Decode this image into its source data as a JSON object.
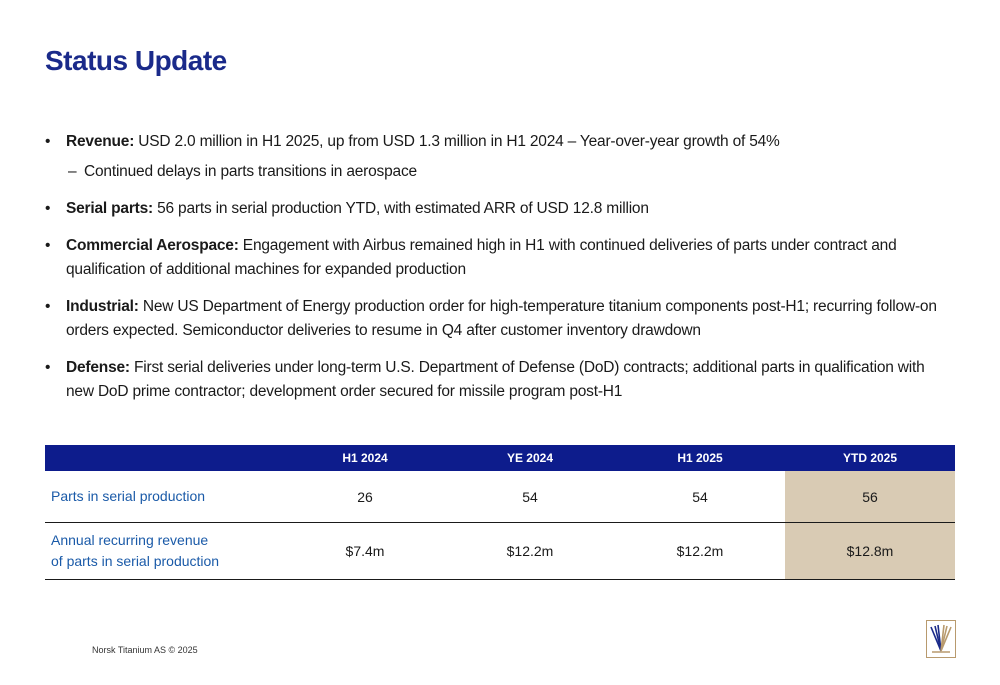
{
  "title": "Status Update",
  "bullets": [
    {
      "label": "Revenue:",
      "text": " USD 2.0 million in H1 2025, up from USD 1.3 million in H1 2024 – Year-over-year growth of 54%",
      "sub": "Continued delays in parts transitions in aerospace"
    },
    {
      "label": "Serial parts:",
      "text": " 56 parts in serial production YTD, with estimated ARR of USD 12.8 million"
    },
    {
      "label": "Commercial Aerospace:",
      "text": " Engagement with Airbus remained high in H1 with continued deliveries of parts under contract and qualification of additional machines for expanded production"
    },
    {
      "label": "Industrial:",
      "text": " New US Department of Energy production order for high-temperature titanium components post-H1; recurring follow-on orders expected. Semiconductor deliveries to resume in Q4 after customer inventory drawdown"
    },
    {
      "label": "Defense:",
      "text": " First serial deliveries under long-term U.S. Department of Defense (DoD) contracts; additional parts in qualification with new DoD prime contractor; development order secured for missile program post-H1"
    }
  ],
  "table": {
    "headers": [
      "",
      "H1 2024",
      "YE 2024",
      "H1 2025",
      "YTD 2025"
    ],
    "rows": [
      {
        "label_line1": "Parts in serial production",
        "label_line2": "",
        "values": [
          "26",
          "54",
          "54",
          "56"
        ]
      },
      {
        "label_line1": "Annual recurring revenue",
        "label_line2": "of parts in serial production",
        "values": [
          "$7.4m",
          "$12.2m",
          "$12.2m",
          "$12.8m"
        ]
      }
    ]
  },
  "footer": "Norsk Titanium AS © 2025",
  "colors": {
    "title": "#1a2a8a",
    "table_header_bg": "#0d1c8c",
    "row_label": "#1a5aa8",
    "ytd_highlight": "#d9cbb4",
    "logo_gold": "#b89a6e",
    "logo_navy": "#1a2a8a"
  },
  "logo": {
    "icon": "norsk-titanium-logo"
  }
}
